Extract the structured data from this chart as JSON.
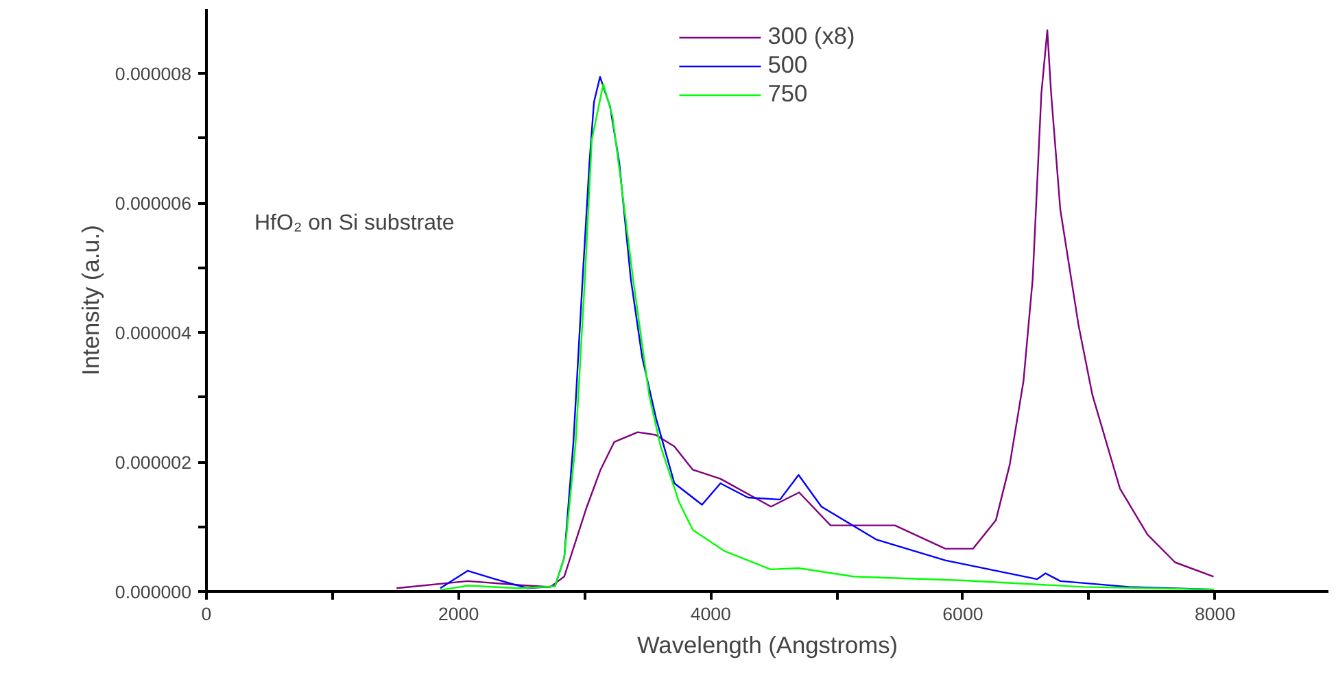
{
  "chart_data": {
    "type": "line",
    "xlabel": "Wavelength (Angstroms)",
    "ylabel": "Intensity (a.u.)",
    "xlim": [
      0,
      8900
    ],
    "ylim": [
      0,
      9e-06
    ],
    "xticks": [
      0,
      {
        "value": 1000,
        "label": null
      },
      2000,
      {
        "value": 3000,
        "label": null
      },
      4000,
      {
        "value": 5000,
        "label": null
      },
      6000,
      {
        "value": 7000,
        "label": null
      },
      8000
    ],
    "yticks": [
      {
        "value": 0,
        "label": "0.000000"
      },
      {
        "value": 1e-06,
        "label": null
      },
      {
        "value": 2e-06,
        "label": "0.000002"
      },
      {
        "value": 3e-06,
        "label": null
      },
      {
        "value": 4e-06,
        "label": "0.000004"
      },
      {
        "value": 5e-06,
        "label": null
      },
      {
        "value": 6e-06,
        "label": "0.000006"
      },
      {
        "value": 7e-06,
        "label": null
      },
      {
        "value": 8e-06,
        "label": "0.000008"
      }
    ],
    "grid": false,
    "legend": "top",
    "marker": "none",
    "line_style": "solid",
    "annotations": [
      "HfO₂ on Si substrate"
    ],
    "series": [
      {
        "name": "300 (x8)",
        "color": "#800080",
        "x": [
          1508,
          2073,
          2470,
          2729,
          2838,
          3016,
          3126,
          3235,
          3421,
          3563,
          3712,
          3858,
          4077,
          4478,
          4701,
          4951,
          5461,
          5861,
          6080,
          6262,
          6372,
          6481,
          6554,
          6623,
          6670,
          6700,
          6773,
          6918,
          7027,
          7246,
          7464,
          7683,
          7989
        ],
        "values": [
          5e-08,
          1.6e-07,
          1e-07,
          7e-08,
          2.3e-07,
          1.3e-06,
          1.88e-06,
          2.31e-06,
          2.46e-06,
          2.42e-06,
          2.24e-06,
          1.88e-06,
          1.74e-06,
          1.31e-06,
          1.53e-06,
          1.02e-06,
          1.02e-06,
          6.6e-07,
          6.6e-07,
          1.1e-06,
          1.96e-06,
          3.25e-06,
          4.83e-06,
          7.7e-06,
          8.67e-06,
          7.7e-06,
          5.9e-06,
          4.11e-06,
          3.04e-06,
          1.59e-06,
          8.8e-07,
          4.5e-07,
          2.3e-07
        ]
      },
      {
        "name": "500",
        "color": "#0000ff",
        "x": [
          1855,
          2073,
          2292,
          2546,
          2765,
          2838,
          2911,
          2984,
          3038,
          3074,
          3122,
          3202,
          3275,
          3366,
          3457,
          3567,
          3712,
          3931,
          4077,
          4295,
          4550,
          4697,
          4878,
          5315,
          5861,
          6590,
          6656,
          6773,
          7319,
          7989
        ],
        "values": [
          5e-08,
          3.2e-07,
          1.9e-07,
          5e-08,
          8e-08,
          5.2e-07,
          2.31e-06,
          4.83e-06,
          6.62e-06,
          7.56e-06,
          7.95e-06,
          7.49e-06,
          6.62e-06,
          4.83e-06,
          3.61e-06,
          2.67e-06,
          1.67e-06,
          1.34e-06,
          1.67e-06,
          1.45e-06,
          1.42e-06,
          1.8e-06,
          1.31e-06,
          8e-07,
          4.8e-07,
          1.9e-07,
          2.8e-07,
          1.6e-07,
          7e-08,
          3e-08
        ]
      },
      {
        "name": "750",
        "color": "#00ff00",
        "x": [
          1855,
          2073,
          2473,
          2765,
          2838,
          2929,
          3002,
          3057,
          3148,
          3221,
          3293,
          3384,
          3512,
          3603,
          3749,
          3858,
          4113,
          4477,
          4697,
          5133,
          6008,
          6954,
          7989
        ],
        "values": [
          2e-08,
          9e-08,
          5e-08,
          8e-08,
          5.2e-07,
          2.31e-06,
          4.83e-06,
          6.98e-06,
          7.84e-06,
          7.34e-06,
          6.26e-06,
          4.83e-06,
          3.03e-06,
          2.24e-06,
          1.38e-06,
          9.5e-07,
          6.2e-07,
          3.4e-07,
          3.6e-07,
          2.3e-07,
          1.7e-07,
          7e-08,
          3e-08
        ]
      }
    ]
  }
}
